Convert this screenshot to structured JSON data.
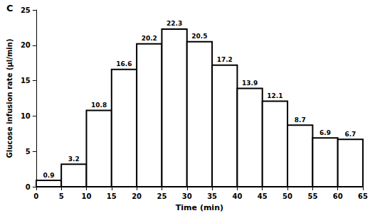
{
  "chart_data": {
    "type": "histogram",
    "title": "C",
    "x_label": "Time (min)",
    "y_label": "Glucose infusion rate (µl/min)",
    "bins": [
      0,
      5,
      10,
      15,
      20,
      25,
      30,
      35,
      40,
      45,
      50,
      55,
      60,
      65
    ],
    "values": [
      0.9,
      3.2,
      10.8,
      16.6,
      20.2,
      22.3,
      20.5,
      17.2,
      13.9,
      12.1,
      8.7,
      6.9,
      6.7
    ],
    "color": "#ffffff",
    "xlim": [
      0,
      65
    ],
    "xticks": [
      0,
      5,
      10,
      15,
      20,
      25,
      30,
      35,
      40,
      45,
      50,
      55,
      60,
      65
    ],
    "ylim": [
      0,
      25
    ],
    "yticks": [
      0,
      5,
      10,
      15,
      20,
      25
    ],
    "grid": false,
    "data_labels": true
  }
}
